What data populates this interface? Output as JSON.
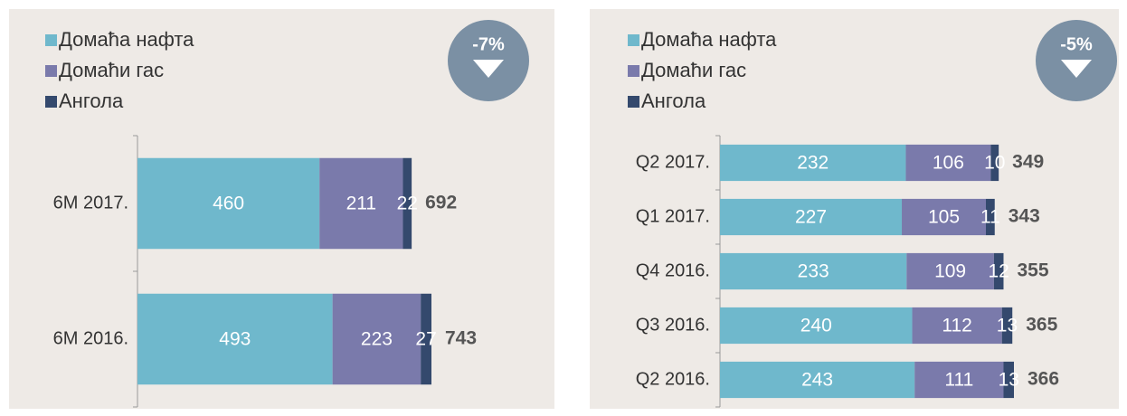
{
  "chart_data": [
    {
      "type": "bar",
      "orientation": "horizontal",
      "stacked": true,
      "badge": "-7%",
      "categories": [
        "6M 2017.",
        "6M 2016."
      ],
      "series": [
        {
          "name": "Домаћа нафта",
          "color": "#6fb8cc",
          "values": [
            460,
            493
          ]
        },
        {
          "name": "Домаћи гас",
          "color": "#7a7aab",
          "values": [
            211,
            223
          ]
        },
        {
          "name": "Ангола",
          "color": "#34496d",
          "values": [
            22,
            27
          ]
        }
      ],
      "totals": [
        692,
        743
      ]
    },
    {
      "type": "bar",
      "orientation": "horizontal",
      "stacked": true,
      "badge": "-5%",
      "categories": [
        "Q2 2017.",
        "Q1 2017.",
        "Q4 2016.",
        "Q3 2016.",
        "Q2 2016."
      ],
      "series": [
        {
          "name": "Домаћа нафта",
          "color": "#6fb8cc",
          "values": [
            232,
            227,
            233,
            240,
            243
          ]
        },
        {
          "name": "Домаћи гас",
          "color": "#7a7aab",
          "values": [
            106,
            105,
            109,
            112,
            111
          ]
        },
        {
          "name": "Ангола",
          "color": "#34496d",
          "values": [
            10,
            11,
            12,
            13,
            13
          ]
        }
      ],
      "totals": [
        349,
        343,
        355,
        365,
        366
      ]
    }
  ]
}
